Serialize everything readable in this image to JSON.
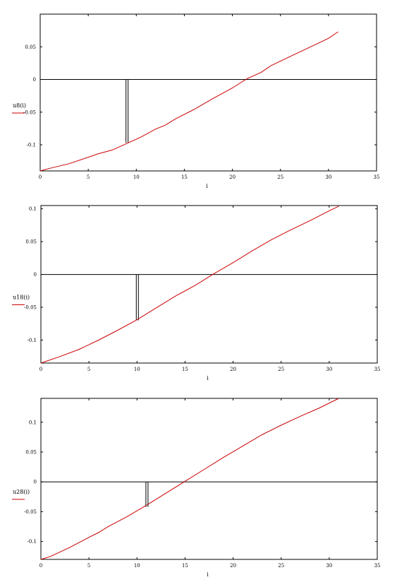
{
  "chart_data": [
    {
      "type": "line",
      "xlabel": "i",
      "legend": "u8(i)",
      "xlim": [
        0,
        35
      ],
      "ylim": [
        -0.14,
        0.1
      ],
      "xticks": [
        0,
        5,
        10,
        15,
        20,
        25,
        30,
        35
      ],
      "xtick_labels": [
        "0",
        "5",
        "10",
        "15",
        "20",
        "25",
        "30",
        "35"
      ],
      "yticks": [
        0.05,
        0,
        -0.05,
        -0.1
      ],
      "ytick_labels": [
        "0.05",
        "0",
        "-0.05",
        "-0.1"
      ],
      "series": [
        {
          "color": "#cc0000",
          "x": [
            0,
            1,
            3,
            5,
            6,
            7.5,
            9,
            10.5,
            12,
            13,
            14,
            16,
            18,
            20,
            21.5,
            23,
            24,
            26,
            28,
            30,
            31
          ],
          "y": [
            -0.14,
            -0.136,
            -0.129,
            -0.119,
            -0.114,
            -0.108,
            -0.098,
            -0.088,
            -0.076,
            -0.07,
            -0.061,
            -0.046,
            -0.029,
            -0.013,
            0.001,
            0.011,
            0.021,
            0.035,
            0.049,
            0.063,
            0.073
          ]
        }
      ],
      "marker": {
        "x": 9,
        "ymin": -0.097,
        "ymax": 0
      }
    },
    {
      "type": "line",
      "xlabel": "i",
      "legend": "u18(i)",
      "xlim": [
        0,
        35
      ],
      "ylim": [
        -0.135,
        0.105
      ],
      "xticks": [
        0,
        5,
        10,
        15,
        20,
        25,
        30,
        35
      ],
      "xtick_labels": [
        "0",
        "5",
        "10",
        "15",
        "20",
        "25",
        "30",
        "35"
      ],
      "yticks": [
        0.1,
        0.05,
        0,
        -0.05,
        -0.1
      ],
      "ytick_labels": [
        "0.1",
        "0.05",
        "0",
        "-0.05",
        "-0.1"
      ],
      "series": [
        {
          "color": "#cc0000",
          "x": [
            0,
            2,
            4,
            6,
            8,
            10,
            12,
            14,
            16,
            18,
            20,
            22,
            24,
            26,
            28,
            30,
            31
          ],
          "y": [
            -0.135,
            -0.125,
            -0.114,
            -0.1,
            -0.085,
            -0.069,
            -0.051,
            -0.033,
            -0.017,
            0.001,
            0.018,
            0.036,
            0.053,
            0.068,
            0.082,
            0.097,
            0.104
          ]
        }
      ],
      "marker": {
        "x": 10,
        "ymin": -0.07,
        "ymax": 0
      }
    },
    {
      "type": "line",
      "xlabel": "i",
      "legend": "u28(i)",
      "xlim": [
        0,
        35
      ],
      "ylim": [
        -0.13,
        0.14
      ],
      "xticks": [
        0,
        5,
        10,
        15,
        20,
        25,
        30,
        35
      ],
      "xtick_labels": [
        "0",
        "5",
        "10",
        "15",
        "20",
        "25",
        "30",
        "35"
      ],
      "yticks": [
        0.1,
        0.05,
        0,
        -0.05,
        -0.1
      ],
      "ytick_labels": [
        "0.1",
        "0.05",
        "0",
        "-0.05",
        "-0.1"
      ],
      "series": [
        {
          "color": "#cc0000",
          "x": [
            0,
            1,
            3,
            5,
            6,
            7,
            9,
            11,
            13,
            15,
            17,
            19,
            21,
            23,
            25,
            27,
            29,
            31
          ],
          "y": [
            -0.13,
            -0.125,
            -0.11,
            -0.093,
            -0.085,
            -0.075,
            -0.058,
            -0.039,
            -0.019,
            0.001,
            0.021,
            0.041,
            0.06,
            0.079,
            0.095,
            0.11,
            0.124,
            0.14
          ]
        }
      ],
      "marker": {
        "x": 11,
        "ymin": -0.042,
        "ymax": 0
      }
    }
  ]
}
